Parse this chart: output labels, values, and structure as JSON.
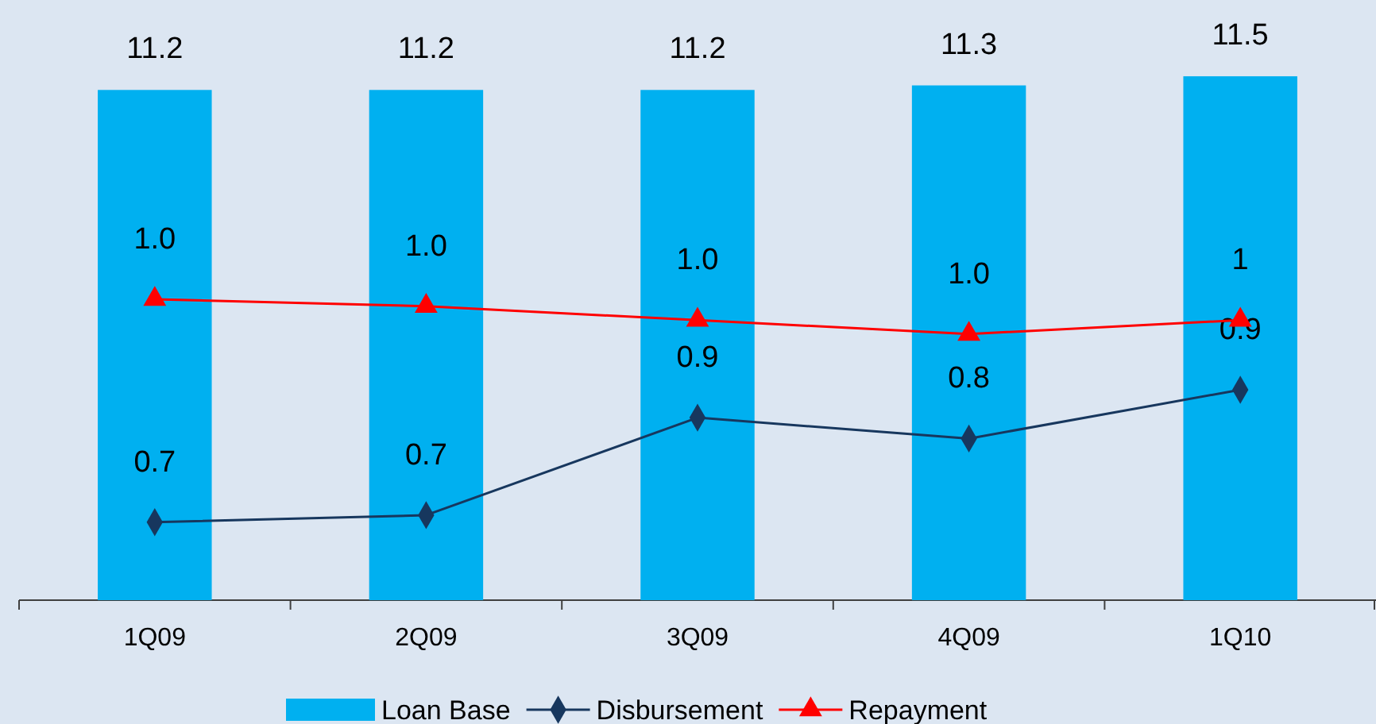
{
  "chart_data": {
    "type": "bar",
    "categories": [
      "1Q09",
      "2Q09",
      "3Q09",
      "4Q09",
      "1Q10"
    ],
    "series": [
      {
        "name": "Loan Base",
        "color": "#00b0f0",
        "values": [
          11.2,
          11.2,
          11.2,
          11.3,
          11.5
        ],
        "value_labels": [
          "11.2",
          "11.2",
          "11.2",
          "11.3",
          "11.5"
        ]
      },
      {
        "name": "Disbursement",
        "type": "line",
        "axis": "y2",
        "color": "#17375e",
        "marker": "diamond",
        "values": [
          0.72,
          0.73,
          0.87,
          0.84,
          0.91
        ],
        "value_labels": [
          "0.7",
          "0.7",
          "0.9",
          "0.8",
          "0.9"
        ]
      },
      {
        "name": "Repayment",
        "type": "line",
        "axis": "y2",
        "color": "#ff0000",
        "marker": "triangle",
        "values": [
          1.04,
          1.03,
          1.01,
          0.99,
          1.01
        ],
        "value_labels": [
          "1.0",
          "1.0",
          "1.0",
          "1.0",
          "1"
        ]
      }
    ],
    "tick_labels": "x",
    "legend": "bottom"
  }
}
